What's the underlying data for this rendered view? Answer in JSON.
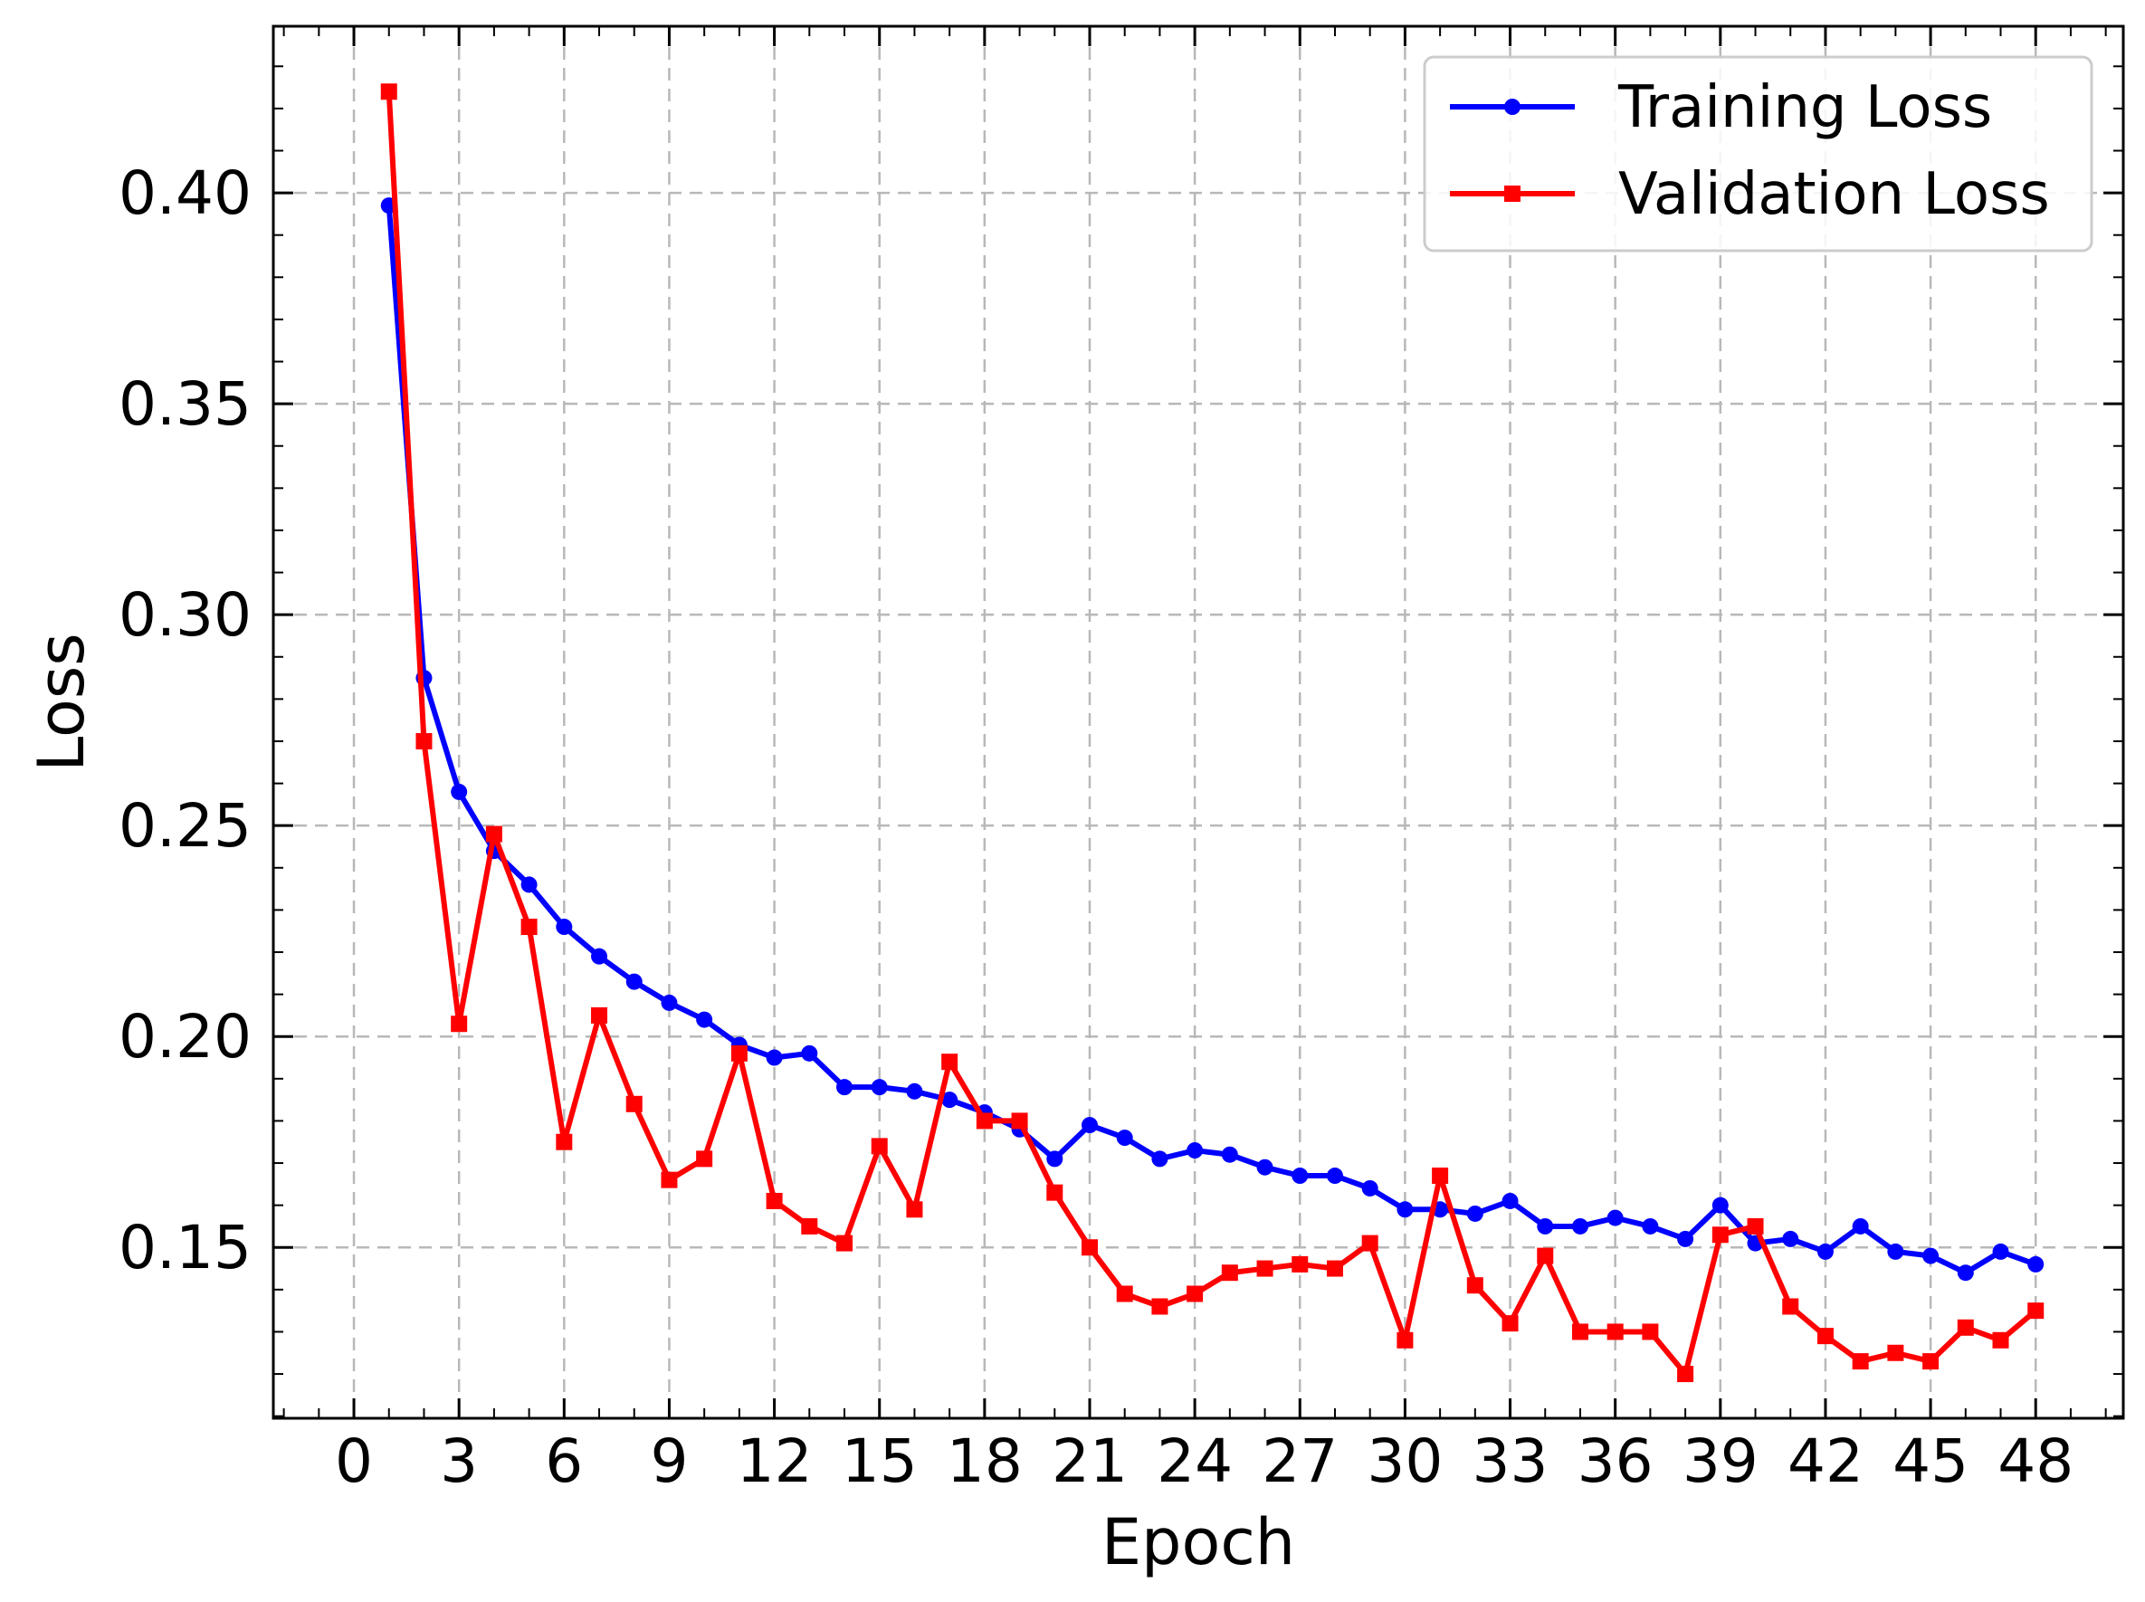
{
  "chart_data": {
    "type": "line",
    "title": "",
    "xlabel": "Epoch",
    "ylabel": "Loss",
    "xlim": [
      -2.3,
      50.5
    ],
    "ylim": [
      0.1095,
      0.4395
    ],
    "xticks": [
      0,
      3,
      6,
      9,
      12,
      15,
      18,
      21,
      24,
      27,
      30,
      33,
      36,
      39,
      42,
      45,
      48
    ],
    "yticks": [
      0.15,
      0.2,
      0.25,
      0.3,
      0.35,
      0.4
    ],
    "ytick_labels": [
      "0.15",
      "0.20",
      "0.25",
      "0.30",
      "0.35",
      "0.40"
    ],
    "grid": true,
    "legend_position": "top-right",
    "x": [
      1,
      2,
      3,
      4,
      5,
      6,
      7,
      8,
      9,
      10,
      11,
      12,
      13,
      14,
      15,
      16,
      17,
      18,
      19,
      20,
      21,
      22,
      23,
      24,
      25,
      26,
      27,
      28,
      29,
      30,
      31,
      32,
      33,
      34,
      35,
      36,
      37,
      38,
      39,
      40,
      41,
      42,
      43,
      44,
      45,
      46,
      47,
      48
    ],
    "series": [
      {
        "name": "Training Loss",
        "color": "#0000ff",
        "marker": "circle",
        "values": [
          0.397,
          0.285,
          0.258,
          0.244,
          0.236,
          0.226,
          0.219,
          0.213,
          0.208,
          0.204,
          0.198,
          0.195,
          0.196,
          0.188,
          0.188,
          0.187,
          0.185,
          0.182,
          0.178,
          0.171,
          0.179,
          0.176,
          0.171,
          0.173,
          0.172,
          0.169,
          0.167,
          0.167,
          0.164,
          0.159,
          0.159,
          0.158,
          0.161,
          0.155,
          0.155,
          0.157,
          0.155,
          0.152,
          0.16,
          0.151,
          0.152,
          0.149,
          0.155,
          0.149,
          0.148,
          0.144,
          0.149,
          0.146
        ]
      },
      {
        "name": "Validation Loss",
        "color": "#ff0000",
        "marker": "square",
        "values": [
          0.424,
          0.27,
          0.203,
          0.248,
          0.226,
          0.175,
          0.205,
          0.184,
          0.166,
          0.171,
          0.196,
          0.161,
          0.155,
          0.151,
          0.174,
          0.159,
          0.194,
          0.18,
          0.18,
          0.163,
          0.15,
          0.139,
          0.136,
          0.139,
          0.144,
          0.145,
          0.146,
          0.145,
          0.151,
          0.128,
          0.167,
          0.141,
          0.132,
          0.148,
          0.13,
          0.13,
          0.13,
          0.12,
          0.153,
          0.155,
          0.136,
          0.129,
          0.123,
          0.125,
          0.123,
          0.131,
          0.128,
          0.135
        ]
      }
    ]
  }
}
